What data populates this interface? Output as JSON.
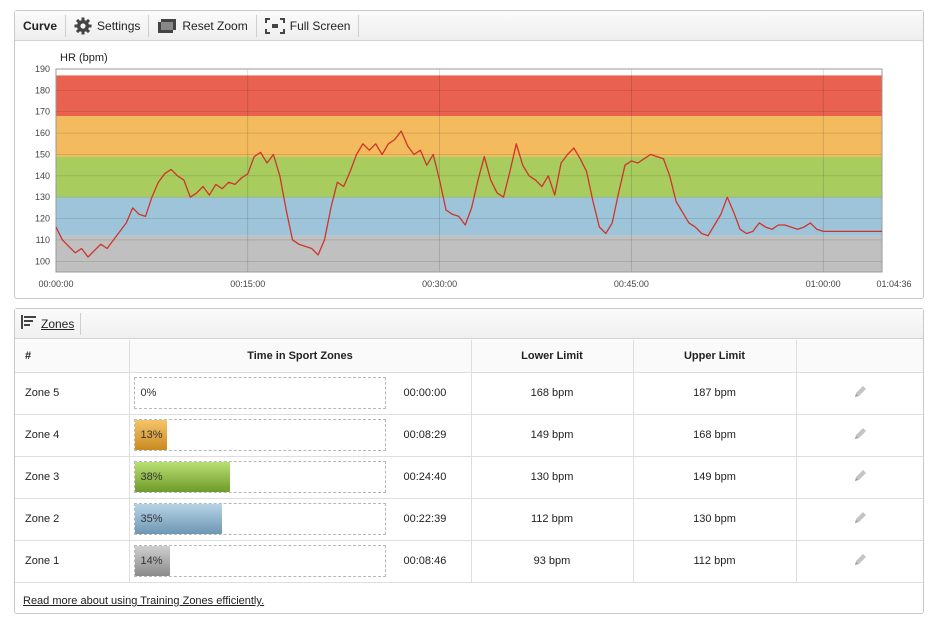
{
  "toolbar": {
    "title": "Curve",
    "settings_label": "Settings",
    "reset_zoom_label": "Reset Zoom",
    "full_screen_label": "Full Screen"
  },
  "chart_data": {
    "type": "line",
    "ylabel": "HR (bpm)",
    "ylim": [
      95,
      190
    ],
    "yticks": [
      100,
      110,
      120,
      130,
      140,
      150,
      160,
      170,
      180,
      190
    ],
    "xlim": [
      0,
      3876
    ],
    "xticks": [
      {
        "t": 0,
        "label": "00:00:00"
      },
      {
        "t": 900,
        "label": "00:15:00"
      },
      {
        "t": 1800,
        "label": "00:30:00"
      },
      {
        "t": 2700,
        "label": "00:45:00"
      },
      {
        "t": 3600,
        "label": "01:00:00"
      },
      {
        "t": 3876,
        "label": "01:04:36"
      }
    ],
    "zone_bands": [
      {
        "from": 95,
        "to": 112,
        "color": "#c0c0c0"
      },
      {
        "from": 112,
        "to": 130,
        "color": "#9ec4d9"
      },
      {
        "from": 130,
        "to": 149,
        "color": "#a8cc5e"
      },
      {
        "from": 149,
        "to": 168,
        "color": "#f3bb5d"
      },
      {
        "from": 168,
        "to": 187,
        "color": "#e8624f"
      }
    ],
    "line_color": "#d0332b",
    "series": [
      {
        "values": [
          [
            0,
            116
          ],
          [
            30,
            110
          ],
          [
            60,
            107
          ],
          [
            90,
            104
          ],
          [
            120,
            106
          ],
          [
            150,
            102
          ],
          [
            180,
            105
          ],
          [
            210,
            108
          ],
          [
            240,
            106
          ],
          [
            270,
            110
          ],
          [
            300,
            114
          ],
          [
            330,
            118
          ],
          [
            360,
            125
          ],
          [
            390,
            122
          ],
          [
            420,
            121
          ],
          [
            450,
            130
          ],
          [
            480,
            137
          ],
          [
            510,
            141
          ],
          [
            540,
            143
          ],
          [
            570,
            140
          ],
          [
            600,
            138
          ],
          [
            630,
            130
          ],
          [
            660,
            132
          ],
          [
            690,
            135
          ],
          [
            720,
            131
          ],
          [
            750,
            136
          ],
          [
            780,
            134
          ],
          [
            810,
            137
          ],
          [
            840,
            136
          ],
          [
            870,
            139
          ],
          [
            900,
            141
          ],
          [
            930,
            149
          ],
          [
            960,
            151
          ],
          [
            990,
            146
          ],
          [
            1020,
            150
          ],
          [
            1050,
            140
          ],
          [
            1080,
            124
          ],
          [
            1110,
            110
          ],
          [
            1140,
            108
          ],
          [
            1170,
            107
          ],
          [
            1200,
            106
          ],
          [
            1230,
            103
          ],
          [
            1260,
            110
          ],
          [
            1290,
            125
          ],
          [
            1320,
            137
          ],
          [
            1350,
            135
          ],
          [
            1380,
            142
          ],
          [
            1410,
            150
          ],
          [
            1440,
            155
          ],
          [
            1470,
            152
          ],
          [
            1500,
            155
          ],
          [
            1530,
            150
          ],
          [
            1560,
            155
          ],
          [
            1590,
            157
          ],
          [
            1620,
            161
          ],
          [
            1650,
            154
          ],
          [
            1680,
            150
          ],
          [
            1710,
            152
          ],
          [
            1740,
            145
          ],
          [
            1770,
            150
          ],
          [
            1800,
            138
          ],
          [
            1830,
            124
          ],
          [
            1860,
            122
          ],
          [
            1890,
            121
          ],
          [
            1920,
            117
          ],
          [
            1950,
            125
          ],
          [
            1980,
            138
          ],
          [
            2010,
            149
          ],
          [
            2040,
            138
          ],
          [
            2070,
            132
          ],
          [
            2100,
            130
          ],
          [
            2130,
            142
          ],
          [
            2160,
            155
          ],
          [
            2190,
            145
          ],
          [
            2220,
            140
          ],
          [
            2250,
            138
          ],
          [
            2280,
            135
          ],
          [
            2310,
            140
          ],
          [
            2340,
            131
          ],
          [
            2370,
            146
          ],
          [
            2400,
            150
          ],
          [
            2430,
            153
          ],
          [
            2460,
            148
          ],
          [
            2490,
            142
          ],
          [
            2520,
            128
          ],
          [
            2550,
            116
          ],
          [
            2580,
            113
          ],
          [
            2610,
            118
          ],
          [
            2640,
            132
          ],
          [
            2670,
            145
          ],
          [
            2700,
            147
          ],
          [
            2730,
            146
          ],
          [
            2760,
            148
          ],
          [
            2790,
            150
          ],
          [
            2820,
            149
          ],
          [
            2850,
            148
          ],
          [
            2880,
            140
          ],
          [
            2910,
            128
          ],
          [
            2940,
            123
          ],
          [
            2970,
            118
          ],
          [
            3000,
            116
          ],
          [
            3030,
            113
          ],
          [
            3060,
            112
          ],
          [
            3090,
            117
          ],
          [
            3120,
            122
          ],
          [
            3150,
            130
          ],
          [
            3180,
            123
          ],
          [
            3210,
            115
          ],
          [
            3240,
            113
          ],
          [
            3270,
            114
          ],
          [
            3300,
            118
          ],
          [
            3330,
            116
          ],
          [
            3360,
            115
          ],
          [
            3390,
            117
          ],
          [
            3420,
            117
          ],
          [
            3450,
            116
          ],
          [
            3480,
            115
          ],
          [
            3510,
            116
          ],
          [
            3540,
            118
          ],
          [
            3570,
            115
          ],
          [
            3600,
            114
          ]
        ]
      }
    ]
  },
  "zones_panel": {
    "tab_label": "Zones",
    "headers": {
      "num": "#",
      "time": "Time in Sport Zones",
      "lower": "Lower Limit",
      "upper": "Upper Limit"
    },
    "rows": [
      {
        "name": "Zone 5",
        "pct_label": "0%",
        "pct": 0,
        "duration": "00:00:00",
        "lower": "168 bpm",
        "upper": "187 bpm",
        "color_top": "#ffffff",
        "color_bottom": "#ffffff"
      },
      {
        "name": "Zone 4",
        "pct_label": "13%",
        "pct": 13,
        "duration": "00:08:29",
        "lower": "149 bpm",
        "upper": "168 bpm",
        "color_top": "#f5c46a",
        "color_bottom": "#c98a1f"
      },
      {
        "name": "Zone 3",
        "pct_label": "38%",
        "pct": 38,
        "duration": "00:24:40",
        "lower": "130 bpm",
        "upper": "149 bpm",
        "color_top": "#b8df72",
        "color_bottom": "#6f9b2a"
      },
      {
        "name": "Zone 2",
        "pct_label": "35%",
        "pct": 35,
        "duration": "00:22:39",
        "lower": "112 bpm",
        "upper": "130 bpm",
        "color_top": "#b5d3e6",
        "color_bottom": "#6e97b2"
      },
      {
        "name": "Zone 1",
        "pct_label": "14%",
        "pct": 14,
        "duration": "00:08:46",
        "lower": "93 bpm",
        "upper": "112 bpm",
        "color_top": "#cfcfcf",
        "color_bottom": "#8a8a8a"
      }
    ],
    "footer_link": "Read more about using Training Zones efficiently."
  }
}
